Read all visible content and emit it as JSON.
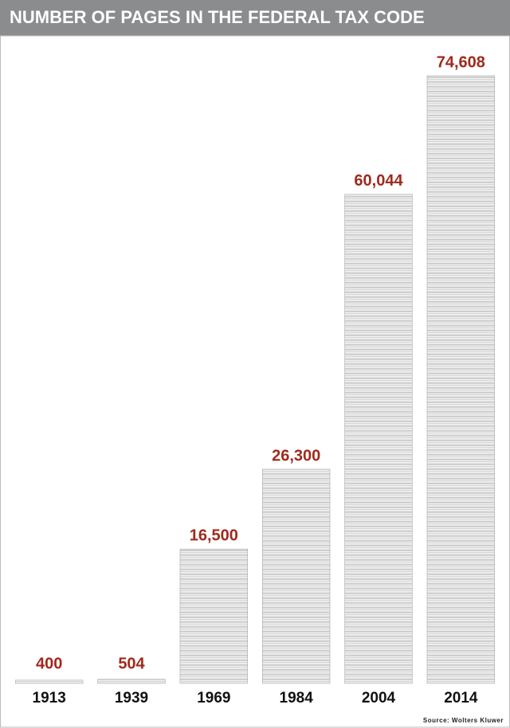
{
  "chart_data": {
    "type": "bar",
    "title": "NUMBER OF PAGES IN THE FEDERAL TAX CODE",
    "categories": [
      "1913",
      "1939",
      "1969",
      "1984",
      "2004",
      "2014"
    ],
    "values": [
      400,
      504,
      16500,
      26300,
      60044,
      74608
    ],
    "value_labels": [
      "400",
      "504",
      "16,500",
      "26,300",
      "60,044",
      "74,608"
    ],
    "color": "#e4e4e4",
    "source": "Source: Wolters Kluwer"
  }
}
